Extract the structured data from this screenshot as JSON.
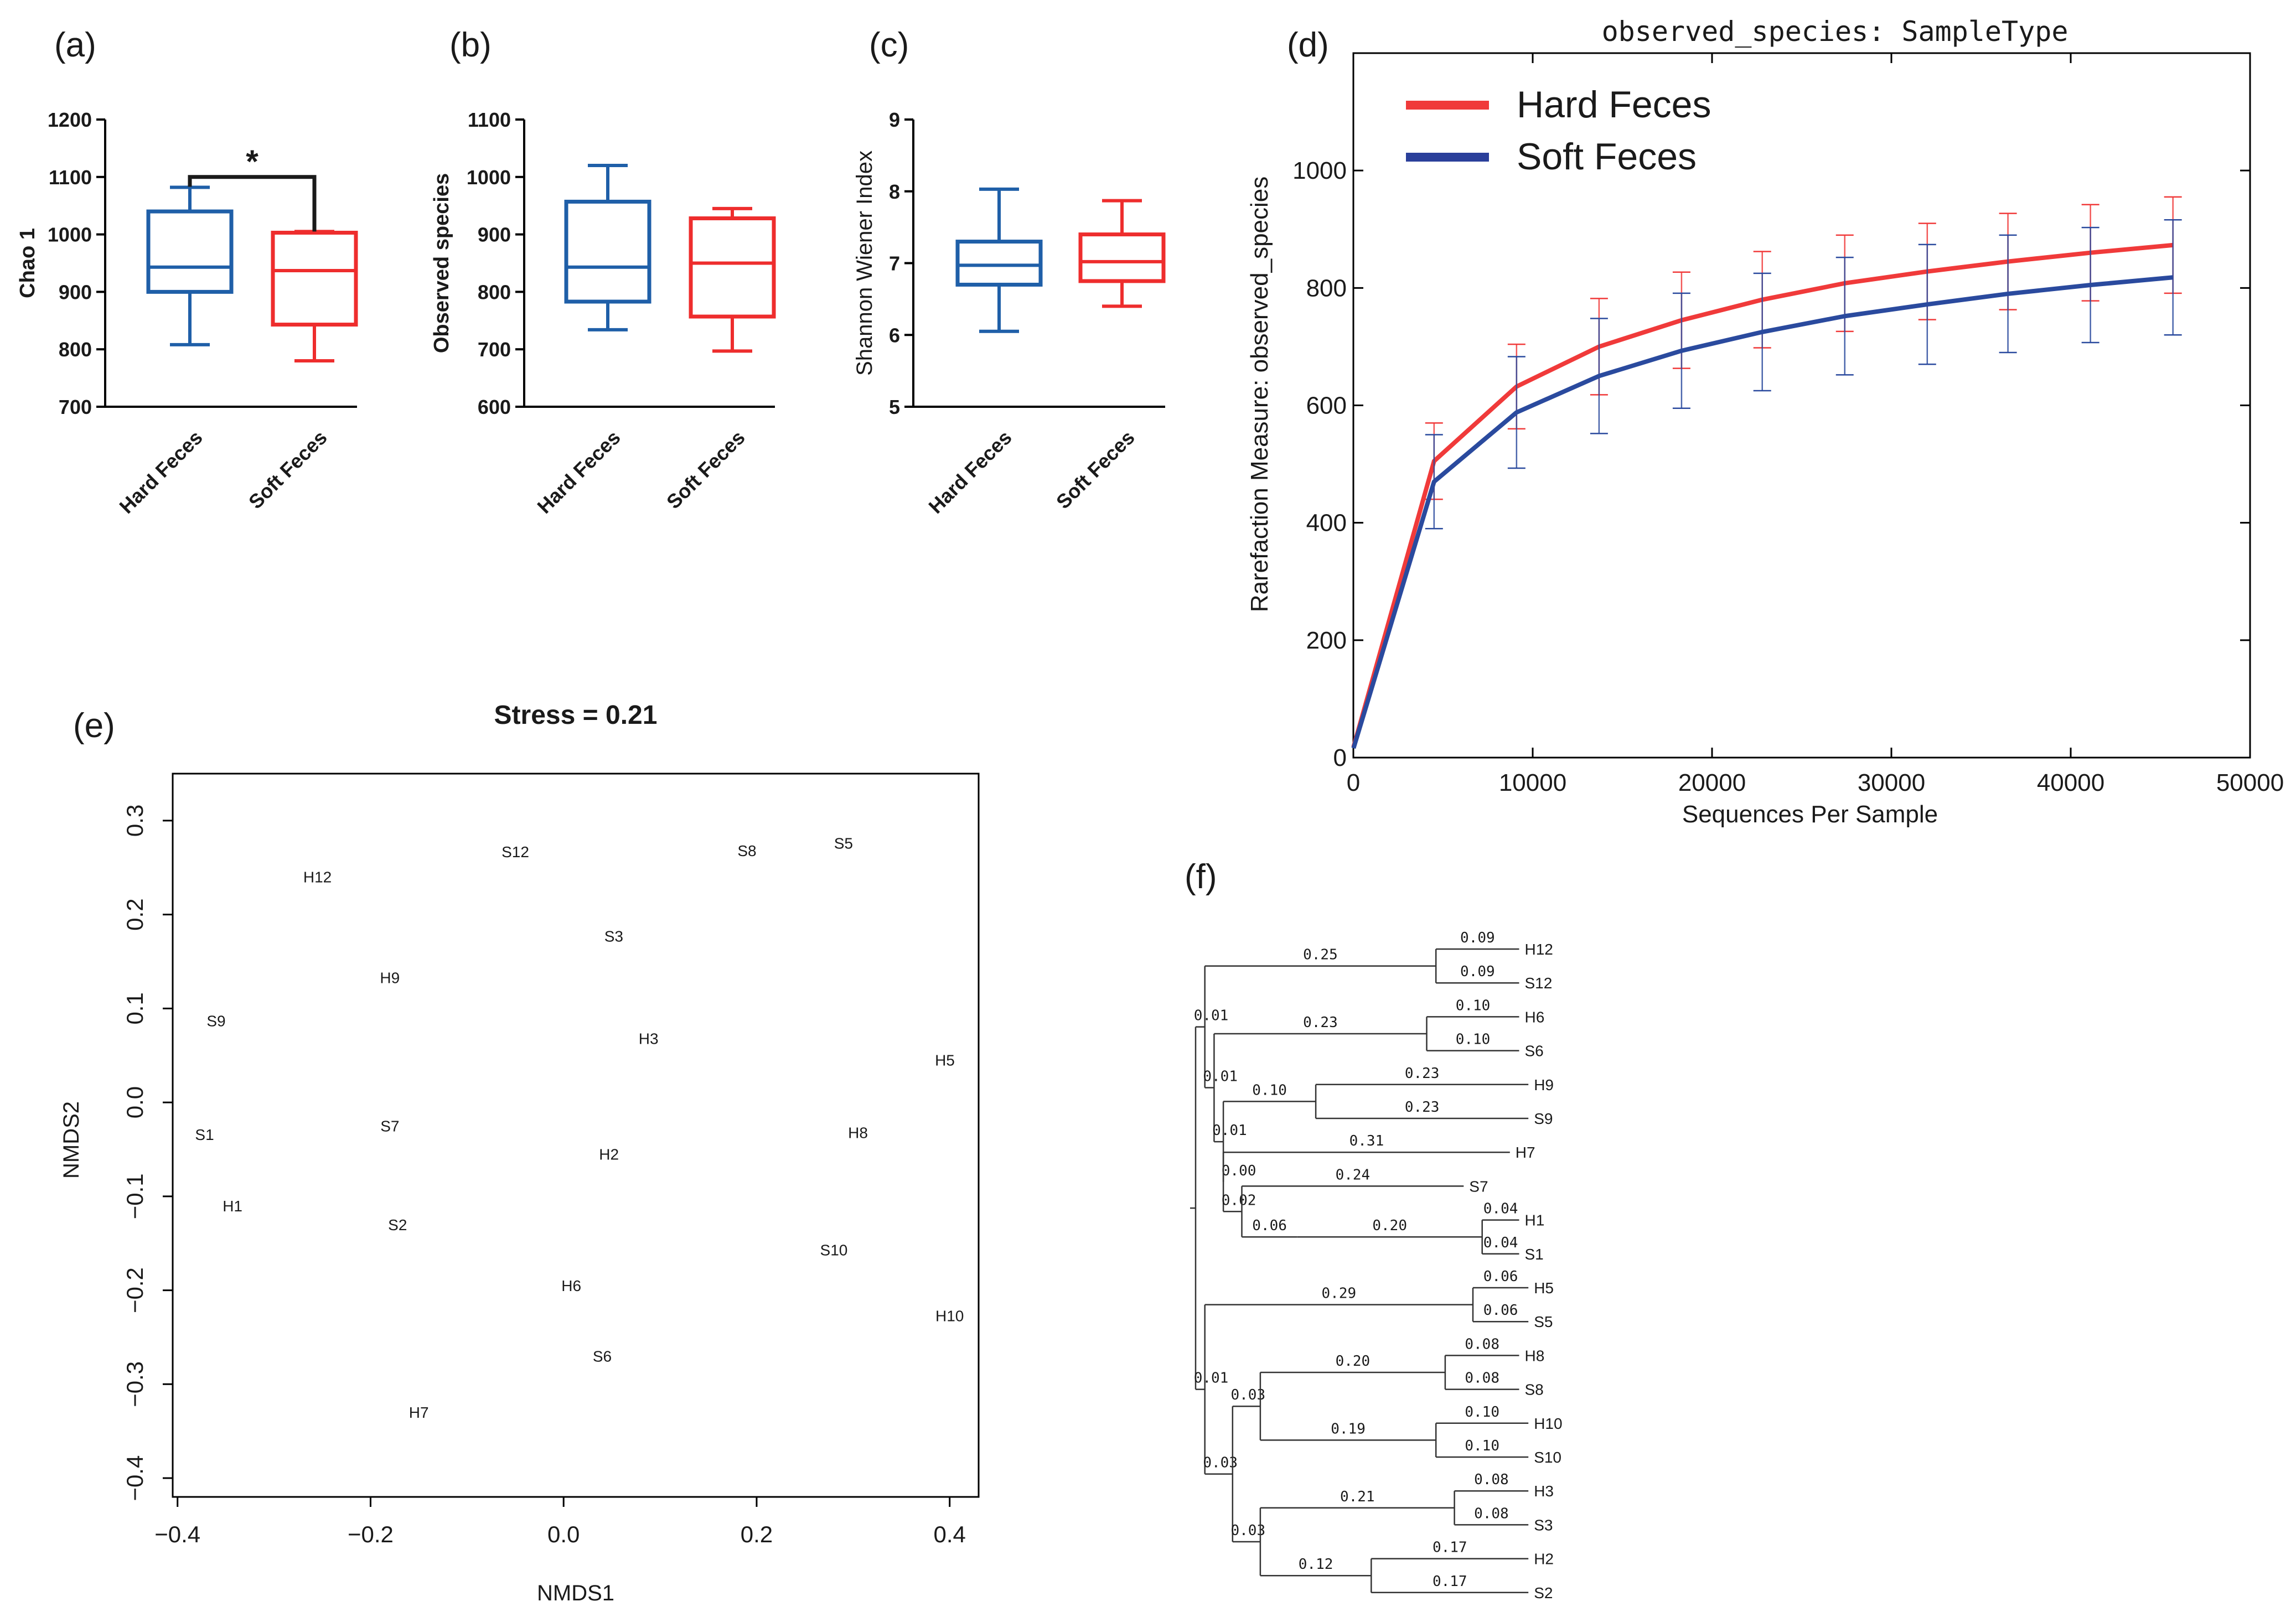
{
  "panels": {
    "a": {
      "tag": "(a)",
      "ylabel": "Chao 1",
      "yticks": [
        700,
        800,
        900,
        1000,
        1100,
        1200
      ],
      "ylim": [
        700,
        1200
      ],
      "categories": [
        "Hard Feces",
        "Soft Feces"
      ],
      "colors": [
        "#1f5fa8",
        "#ee2d2d"
      ],
      "boxes": [
        {
          "min": 808,
          "q1": 900,
          "median": 943,
          "q3": 1040,
          "max": 1082
        },
        {
          "min": 780,
          "q1": 843,
          "median": 937,
          "q3": 1003,
          "max": 1005
        }
      ],
      "significance": "*"
    },
    "b": {
      "tag": "(b)",
      "ylabel": "Observed species",
      "yticks": [
        600,
        700,
        800,
        900,
        1000,
        1100
      ],
      "ylim": [
        600,
        1100
      ],
      "categories": [
        "Hard Feces",
        "Soft Feces"
      ],
      "colors": [
        "#1f5fa8",
        "#ee2d2d"
      ],
      "boxes": [
        {
          "min": 734,
          "q1": 783,
          "median": 843,
          "q3": 957,
          "max": 1020
        },
        {
          "min": 697,
          "q1": 757,
          "median": 850,
          "q3": 928,
          "max": 945
        }
      ]
    },
    "c": {
      "tag": "(c)",
      "ylabel": "Shannon Wiener Index",
      "yticks": [
        5,
        6,
        7,
        8,
        9
      ],
      "ylim": [
        5,
        9
      ],
      "categories": [
        "Hard Feces",
        "Soft Feces"
      ],
      "colors": [
        "#1f5fa8",
        "#ee2d2d"
      ],
      "boxes": [
        {
          "min": 6.05,
          "q1": 6.7,
          "median": 6.97,
          "q3": 7.3,
          "max": 8.03
        },
        {
          "min": 6.4,
          "q1": 6.75,
          "median": 7.02,
          "q3": 7.4,
          "max": 7.87
        }
      ]
    },
    "d": {
      "tag": "(d)",
      "title": "observed_species: SampleType",
      "xlabel": "Sequences Per Sample",
      "ylabel": "Rarefaction Measure: observed_species",
      "xticks": [
        0,
        10000,
        20000,
        30000,
        40000,
        50000
      ],
      "xtick_labels": [
        "0",
        "10000",
        "20000",
        "30000",
        "40000",
        "50000"
      ],
      "yticks": [
        0,
        200,
        400,
        600,
        800,
        1000
      ],
      "xlim": [
        0,
        50000
      ],
      "ylim": [
        0,
        1200
      ],
      "x": [
        10,
        4500,
        9100,
        13700,
        18300,
        22800,
        27400,
        32000,
        36500,
        41100,
        45700
      ],
      "series": [
        {
          "name": "Hard Feces",
          "color": "#f03a3a",
          "values": [
            18,
            505,
            632,
            700,
            745,
            780,
            808,
            828,
            845,
            860,
            873
          ],
          "err": [
            0,
            65,
            72,
            82,
            82,
            82,
            82,
            82,
            82,
            82,
            82
          ]
        },
        {
          "name": "Soft Feces",
          "color": "#2a4a9e",
          "values": [
            16,
            470,
            588,
            650,
            693,
            725,
            752,
            772,
            790,
            805,
            818
          ],
          "err": [
            0,
            80,
            95,
            98,
            98,
            100,
            100,
            102,
            100,
            98,
            98
          ]
        }
      ],
      "legend": [
        {
          "label": "Hard Feces",
          "color": "#f03a3a"
        },
        {
          "label": " Soft Feces",
          "color": "#2a3f9a"
        }
      ]
    },
    "e": {
      "tag": "(e)",
      "title": "Stress = 0.21",
      "xlabel": "NMDS1",
      "ylabel": "NMDS2",
      "xticks": [
        -0.4,
        -0.2,
        0.0,
        0.2,
        0.4
      ],
      "xtick_labels": [
        "−0.4",
        "−0.2",
        "0.0",
        "0.2",
        "0.4"
      ],
      "yticks": [
        -0.4,
        -0.3,
        -0.2,
        -0.1,
        0.0,
        0.1,
        0.2,
        0.3
      ],
      "ytick_labels": [
        "−0.4",
        "−0.3",
        "−0.2",
        "−0.1",
        "0.0",
        "0.1",
        "0.2",
        "0.3"
      ],
      "xlim": [
        -0.405,
        0.43
      ],
      "ylim": [
        -0.42,
        0.35
      ],
      "points": [
        {
          "label": "H12",
          "x": -0.255,
          "y": 0.24
        },
        {
          "label": "S12",
          "x": -0.05,
          "y": 0.267
        },
        {
          "label": "S8",
          "x": 0.19,
          "y": 0.268
        },
        {
          "label": "S5",
          "x": 0.29,
          "y": 0.276
        },
        {
          "label": "S3",
          "x": 0.052,
          "y": 0.177
        },
        {
          "label": "H9",
          "x": -0.18,
          "y": 0.133
        },
        {
          "label": "S9",
          "x": -0.36,
          "y": 0.087
        },
        {
          "label": "H3",
          "x": 0.088,
          "y": 0.068
        },
        {
          "label": "H5",
          "x": 0.395,
          "y": 0.045
        },
        {
          "label": "S1",
          "x": -0.372,
          "y": -0.034
        },
        {
          "label": "S7",
          "x": -0.18,
          "y": -0.025
        },
        {
          "label": "H8",
          "x": 0.305,
          "y": -0.032
        },
        {
          "label": "H2",
          "x": 0.047,
          "y": -0.055
        },
        {
          "label": "H1",
          "x": -0.343,
          "y": -0.11
        },
        {
          "label": "S2",
          "x": -0.172,
          "y": -0.13
        },
        {
          "label": "S10",
          "x": 0.28,
          "y": -0.157
        },
        {
          "label": "H6",
          "x": 0.008,
          "y": -0.195
        },
        {
          "label": "H10",
          "x": 0.4,
          "y": -0.227
        },
        {
          "label": "S6",
          "x": 0.04,
          "y": -0.27
        },
        {
          "label": "H7",
          "x": -0.15,
          "y": -0.33
        }
      ]
    },
    "f": {
      "tag": "(f)",
      "tree": {
        "b": 0,
        "c": [
          {
            "b": 0.01,
            "c": [
              {
                "b": 0.25,
                "c": [
                  {
                    "b": 0.09,
                    "n": "H12"
                  },
                  {
                    "b": 0.09,
                    "n": "S12"
                  }
                ]
              },
              {
                "b": 0.01,
                "c": [
                  {
                    "b": 0.23,
                    "c": [
                      {
                        "b": 0.1,
                        "n": "H6"
                      },
                      {
                        "b": 0.1,
                        "n": "S6"
                      }
                    ]
                  },
                  {
                    "b": 0.01,
                    "c": [
                      {
                        "b": 0.1,
                        "c": [
                          {
                            "b": 0.23,
                            "n": "H9"
                          },
                          {
                            "b": 0.23,
                            "n": "S9"
                          }
                        ]
                      },
                      {
                        "b": 0.0,
                        "c": [
                          {
                            "b": 0.31,
                            "n": "H7"
                          },
                          {
                            "b": 0.02,
                            "c": [
                              {
                                "b": 0.24,
                                "n": "S7"
                              },
                              {
                                "b": 0.06,
                                "c": [
                                  {
                                    "b": 0.2,
                                    "c": [
                                      {
                                        "b": 0.04,
                                        "n": "H1"
                                      },
                                      {
                                        "b": 0.04,
                                        "n": "S1"
                                      }
                                    ]
                                  }
                                ]
                              }
                            ]
                          }
                        ]
                      }
                    ]
                  }
                ]
              }
            ]
          },
          {
            "b": 0.01,
            "c": [
              {
                "b": 0.29,
                "c": [
                  {
                    "b": 0.06,
                    "n": "H5"
                  },
                  {
                    "b": 0.06,
                    "n": "S5"
                  }
                ]
              },
              {
                "b": 0.03,
                "c": [
                  {
                    "b": 0.03,
                    "c": [
                      {
                        "b": 0.2,
                        "c": [
                          {
                            "b": 0.08,
                            "n": "H8"
                          },
                          {
                            "b": 0.08,
                            "n": "S8"
                          }
                        ]
                      },
                      {
                        "b": 0.19,
                        "c": [
                          {
                            "b": 0.1,
                            "n": "H10"
                          },
                          {
                            "b": 0.1,
                            "n": "S10"
                          }
                        ]
                      }
                    ]
                  },
                  {
                    "b": 0.03,
                    "c": [
                      {
                        "b": 0.21,
                        "c": [
                          {
                            "b": 0.08,
                            "n": "H3"
                          },
                          {
                            "b": 0.08,
                            "n": "S3"
                          }
                        ]
                      },
                      {
                        "b": 0.12,
                        "c": [
                          {
                            "b": 0.17,
                            "n": "H2"
                          },
                          {
                            "b": 0.17,
                            "n": "S2"
                          }
                        ]
                      }
                    ]
                  }
                ]
              }
            ]
          }
        ]
      }
    }
  },
  "chart_data": [
    {
      "type": "box",
      "panel": "(a)",
      "ylabel": "Chao 1",
      "categories": [
        "Hard Feces",
        "Soft Feces"
      ],
      "ylim": [
        700,
        1200
      ]
    },
    {
      "type": "box",
      "panel": "(b)",
      "ylabel": "Observed species",
      "categories": [
        "Hard Feces",
        "Soft Feces"
      ],
      "ylim": [
        600,
        1100
      ]
    },
    {
      "type": "box",
      "panel": "(c)",
      "ylabel": "Shannon Wiener Index",
      "categories": [
        "Hard Feces",
        "Soft Feces"
      ],
      "ylim": [
        5,
        9
      ]
    },
    {
      "type": "line",
      "panel": "(d)",
      "title": "observed_species: SampleType",
      "xlabel": "Sequences Per Sample",
      "ylabel": "Rarefaction Measure: observed_species"
    },
    {
      "type": "scatter",
      "panel": "(e)",
      "title": "Stress = 0.21",
      "xlabel": "NMDS1",
      "ylabel": "NMDS2"
    },
    {
      "type": "dendrogram",
      "panel": "(f)"
    }
  ]
}
